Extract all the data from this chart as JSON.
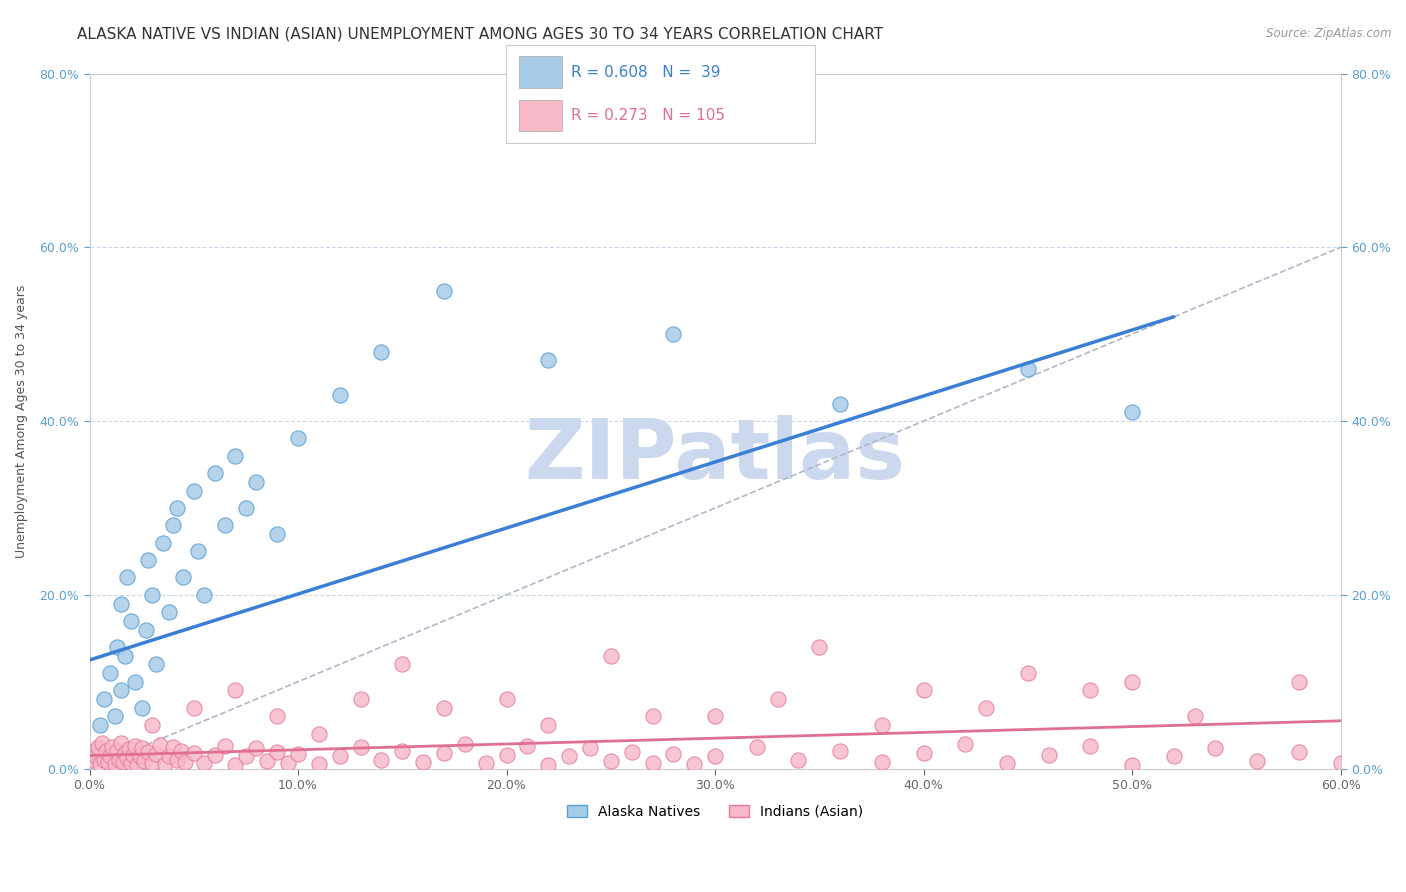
{
  "title": "ALASKA NATIVE VS INDIAN (ASIAN) UNEMPLOYMENT AMONG AGES 30 TO 34 YEARS CORRELATION CHART",
  "source": "Source: ZipAtlas.com",
  "ylabel": "Unemployment Among Ages 30 to 34 years",
  "xlim": [
    0.0,
    0.6
  ],
  "ylim": [
    0.0,
    0.8
  ],
  "xticks": [
    0.0,
    0.1,
    0.2,
    0.3,
    0.4,
    0.5,
    0.6
  ],
  "yticks": [
    0.0,
    0.2,
    0.4,
    0.6,
    0.8
  ],
  "alaska_color": "#a8cce8",
  "alaska_edge_color": "#5a9fd4",
  "indian_color": "#f7b8c8",
  "indian_edge_color": "#e87898",
  "alaska_R": 0.608,
  "alaska_N": 39,
  "indian_R": 0.273,
  "indian_N": 105,
  "alaska_trend_color": "#3a7fd4",
  "indian_trend_color": "#e07090",
  "diag_color": "#b0b8c8",
  "alaska_scatter_x": [
    0.005,
    0.007,
    0.01,
    0.012,
    0.013,
    0.015,
    0.015,
    0.017,
    0.018,
    0.02,
    0.022,
    0.025,
    0.027,
    0.028,
    0.03,
    0.032,
    0.035,
    0.038,
    0.04,
    0.042,
    0.045,
    0.05,
    0.052,
    0.055,
    0.06,
    0.065,
    0.07,
    0.075,
    0.08,
    0.09,
    0.1,
    0.12,
    0.14,
    0.17,
    0.22,
    0.28,
    0.36,
    0.45,
    0.5
  ],
  "alaska_scatter_y": [
    0.05,
    0.08,
    0.11,
    0.06,
    0.14,
    0.09,
    0.19,
    0.13,
    0.22,
    0.17,
    0.1,
    0.07,
    0.16,
    0.24,
    0.2,
    0.12,
    0.26,
    0.18,
    0.28,
    0.3,
    0.22,
    0.32,
    0.25,
    0.2,
    0.34,
    0.28,
    0.36,
    0.3,
    0.33,
    0.27,
    0.38,
    0.43,
    0.48,
    0.55,
    0.47,
    0.5,
    0.42,
    0.46,
    0.41
  ],
  "indian_scatter_x": [
    0.001,
    0.002,
    0.003,
    0.004,
    0.005,
    0.006,
    0.007,
    0.008,
    0.009,
    0.01,
    0.011,
    0.012,
    0.013,
    0.014,
    0.015,
    0.016,
    0.017,
    0.018,
    0.019,
    0.02,
    0.021,
    0.022,
    0.023,
    0.024,
    0.025,
    0.026,
    0.028,
    0.03,
    0.032,
    0.034,
    0.036,
    0.038,
    0.04,
    0.042,
    0.044,
    0.046,
    0.05,
    0.055,
    0.06,
    0.065,
    0.07,
    0.075,
    0.08,
    0.085,
    0.09,
    0.095,
    0.1,
    0.11,
    0.12,
    0.13,
    0.14,
    0.15,
    0.16,
    0.17,
    0.18,
    0.19,
    0.2,
    0.21,
    0.22,
    0.23,
    0.24,
    0.25,
    0.26,
    0.27,
    0.28,
    0.29,
    0.3,
    0.32,
    0.34,
    0.36,
    0.38,
    0.4,
    0.42,
    0.44,
    0.46,
    0.48,
    0.5,
    0.52,
    0.54,
    0.56,
    0.58,
    0.6,
    0.15,
    0.2,
    0.25,
    0.3,
    0.35,
    0.4,
    0.45,
    0.5,
    0.03,
    0.05,
    0.07,
    0.09,
    0.11,
    0.13,
    0.17,
    0.22,
    0.27,
    0.33,
    0.38,
    0.43,
    0.48,
    0.53,
    0.58
  ],
  "indian_scatter_y": [
    0.01,
    0.02,
    0.015,
    0.025,
    0.005,
    0.03,
    0.01,
    0.02,
    0.008,
    0.015,
    0.025,
    0.005,
    0.02,
    0.01,
    0.03,
    0.008,
    0.018,
    0.012,
    0.022,
    0.006,
    0.016,
    0.026,
    0.004,
    0.014,
    0.024,
    0.009,
    0.019,
    0.007,
    0.017,
    0.027,
    0.005,
    0.015,
    0.025,
    0.01,
    0.02,
    0.008,
    0.018,
    0.006,
    0.016,
    0.026,
    0.004,
    0.014,
    0.024,
    0.009,
    0.019,
    0.007,
    0.017,
    0.005,
    0.015,
    0.025,
    0.01,
    0.02,
    0.008,
    0.018,
    0.028,
    0.006,
    0.016,
    0.026,
    0.004,
    0.014,
    0.024,
    0.009,
    0.019,
    0.007,
    0.017,
    0.005,
    0.015,
    0.025,
    0.01,
    0.02,
    0.008,
    0.018,
    0.028,
    0.006,
    0.016,
    0.026,
    0.004,
    0.014,
    0.024,
    0.009,
    0.019,
    0.007,
    0.12,
    0.08,
    0.13,
    0.06,
    0.14,
    0.09,
    0.11,
    0.1,
    0.05,
    0.07,
    0.09,
    0.06,
    0.04,
    0.08,
    0.07,
    0.05,
    0.06,
    0.08,
    0.05,
    0.07,
    0.09,
    0.06,
    0.1
  ],
  "alaska_trend_x": [
    0.0,
    0.52
  ],
  "alaska_trend_y": [
    0.125,
    0.52
  ],
  "indian_trend_x": [
    0.0,
    0.6
  ],
  "indian_trend_y": [
    0.015,
    0.055
  ],
  "background_color": "#ffffff",
  "grid_color": "#d0d8e8",
  "title_fontsize": 11,
  "axis_label_fontsize": 9,
  "tick_fontsize": 9,
  "watermark_text": "ZIPatlas",
  "watermark_color": "#ccd8ee",
  "watermark_fontsize": 60
}
